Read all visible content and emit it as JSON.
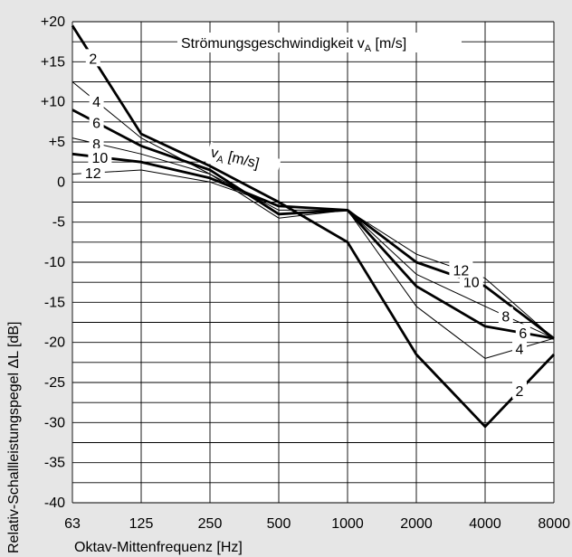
{
  "chart_data": {
    "type": "line",
    "title": "",
    "xlabel": "Oktav-Mittenfrequenz [Hz]",
    "ylabel": "Relativ-Schallleistungspegel ΔL [dB]",
    "x_scale": "log2",
    "categories": [
      "63",
      "125",
      "250",
      "500",
      "1000",
      "2000",
      "4000",
      "8000"
    ],
    "x": [
      63,
      125,
      250,
      500,
      1000,
      2000,
      4000,
      8000
    ],
    "ylim": [
      -40,
      20
    ],
    "yticks": [
      "+20",
      "+15",
      "+10",
      "+5",
      "0",
      "-5",
      "-10",
      "-15",
      "-20",
      "-25",
      "-30",
      "-35",
      "-40"
    ],
    "grid": true,
    "annotations": {
      "legend_title": "Strömungsgeschwindigkeit v",
      "legend_title_sub": "A",
      "legend_title_unit": " [m/s]",
      "curve_label": "v",
      "curve_label_sub": "A",
      "curve_label_unit": " [m/s]"
    },
    "series": [
      {
        "name": "2",
        "values": [
          19.5,
          6.0,
          2.0,
          -2.5,
          -7.5,
          -21.5,
          -30.5,
          -21.5
        ],
        "weight": "bold"
      },
      {
        "name": "4",
        "values": [
          12.5,
          5.5,
          1.0,
          -4.5,
          -3.5,
          -15.5,
          -22.0,
          -19.5
        ],
        "weight": "thin"
      },
      {
        "name": "6",
        "values": [
          9.0,
          4.5,
          1.5,
          -4.0,
          -3.5,
          -13.0,
          -18.0,
          -19.5
        ],
        "weight": "bold"
      },
      {
        "name": "8",
        "values": [
          5.5,
          3.5,
          1.0,
          -3.5,
          -3.5,
          -11.5,
          -15.5,
          -19.5
        ],
        "weight": "thin"
      },
      {
        "name": "10",
        "values": [
          3.5,
          2.5,
          0.5,
          -3.0,
          -3.5,
          -10.0,
          -13.0,
          -19.5
        ],
        "weight": "bold"
      },
      {
        "name": "12",
        "values": [
          1.0,
          1.5,
          0.0,
          -3.0,
          -3.5,
          -9.0,
          -12.0,
          -19.5
        ],
        "weight": "thin"
      }
    ]
  }
}
